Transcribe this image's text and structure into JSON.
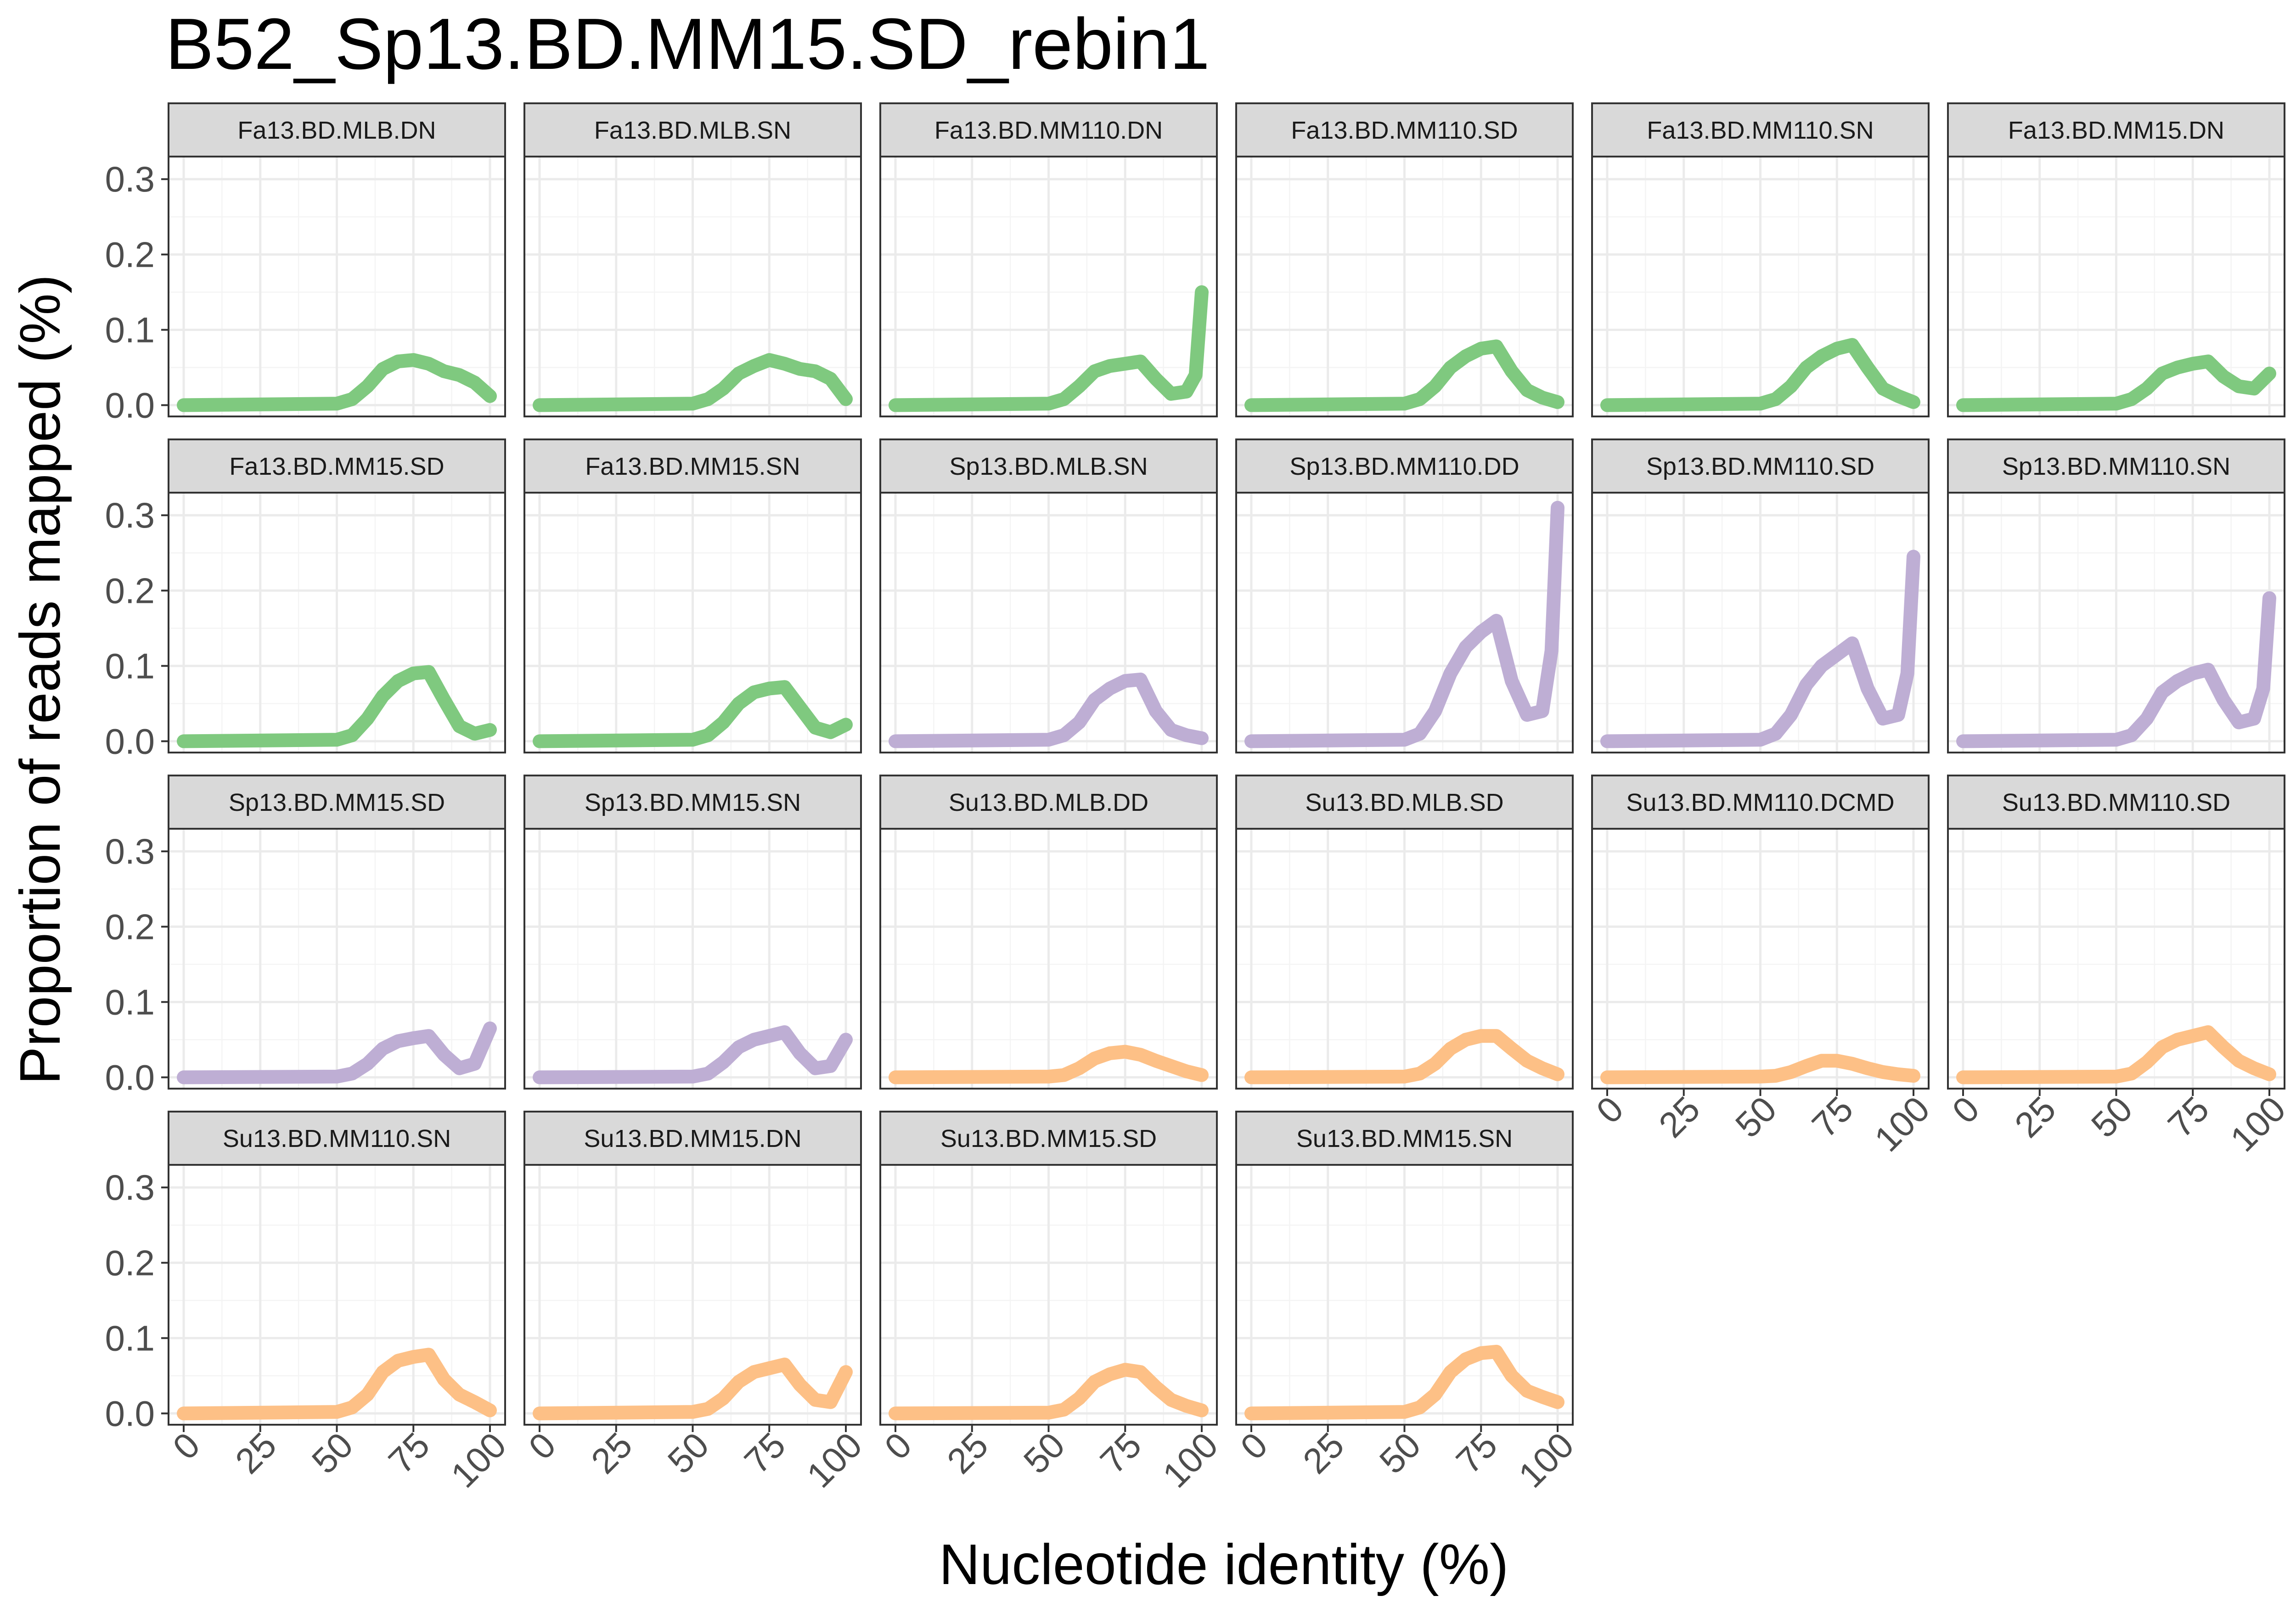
{
  "chart_data": {
    "type": "line",
    "title": "B52_Sp13.BD.MM15.SD_rebin1",
    "xlabel": "Nucleotide identity (%)",
    "ylabel": "Proportion of reads mapped (%)",
    "xlim": [
      0,
      100
    ],
    "ylim": [
      -0.015,
      0.33
    ],
    "x_ticks": [
      0,
      25,
      50,
      75,
      100
    ],
    "y_ticks": [
      0.0,
      0.1,
      0.2,
      0.3
    ],
    "x_tick_labels": [
      "0",
      "25",
      "50",
      "75",
      "100"
    ],
    "y_tick_labels": [
      "0.0",
      "0.1",
      "0.2",
      "0.3"
    ],
    "grid": true,
    "legend": "none",
    "layout": {
      "columns": 6,
      "rows": 4
    },
    "colors": {
      "Fa": "#7fc97f",
      "Sp": "#beaed4",
      "Su": "#fdc086"
    },
    "panels": [
      {
        "name": "Fa13.BD.MLB.DN",
        "group": "Fa",
        "x": [
          0,
          50,
          55,
          60,
          65,
          70,
          75,
          80,
          85,
          90,
          95,
          100
        ],
        "y": [
          0,
          0.002,
          0.008,
          0.025,
          0.048,
          0.058,
          0.06,
          0.055,
          0.045,
          0.04,
          0.03,
          0.012
        ]
      },
      {
        "name": "Fa13.BD.MLB.SN",
        "group": "Fa",
        "x": [
          0,
          50,
          55,
          60,
          65,
          70,
          75,
          80,
          85,
          90,
          95,
          100
        ],
        "y": [
          0,
          0.002,
          0.008,
          0.022,
          0.042,
          0.052,
          0.06,
          0.055,
          0.048,
          0.045,
          0.035,
          0.008
        ]
      },
      {
        "name": "Fa13.BD.MM110.DN",
        "group": "Fa",
        "x": [
          0,
          50,
          55,
          60,
          65,
          70,
          75,
          80,
          85,
          90,
          95,
          98,
          100
        ],
        "y": [
          0,
          0.002,
          0.008,
          0.025,
          0.045,
          0.052,
          0.055,
          0.058,
          0.035,
          0.015,
          0.018,
          0.04,
          0.15
        ]
      },
      {
        "name": "Fa13.BD.MM110.SD",
        "group": "Fa",
        "x": [
          0,
          50,
          55,
          60,
          65,
          70,
          75,
          80,
          85,
          90,
          95,
          100
        ],
        "y": [
          0,
          0.002,
          0.008,
          0.025,
          0.05,
          0.065,
          0.075,
          0.078,
          0.045,
          0.02,
          0.01,
          0.004
        ]
      },
      {
        "name": "Fa13.BD.MM110.SN",
        "group": "Fa",
        "x": [
          0,
          50,
          55,
          60,
          65,
          70,
          75,
          80,
          85,
          90,
          95,
          100
        ],
        "y": [
          0,
          0.002,
          0.008,
          0.025,
          0.05,
          0.065,
          0.075,
          0.08,
          0.05,
          0.022,
          0.012,
          0.004
        ]
      },
      {
        "name": "Fa13.BD.MM15.DN",
        "group": "Fa",
        "x": [
          0,
          50,
          55,
          60,
          65,
          70,
          75,
          80,
          85,
          90,
          95,
          100
        ],
        "y": [
          0,
          0.002,
          0.008,
          0.022,
          0.042,
          0.05,
          0.055,
          0.058,
          0.038,
          0.025,
          0.022,
          0.042
        ]
      },
      {
        "name": "Fa13.BD.MM15.SD",
        "group": "Fa",
        "x": [
          0,
          50,
          55,
          60,
          65,
          70,
          75,
          80,
          85,
          90,
          95,
          100
        ],
        "y": [
          0,
          0.002,
          0.008,
          0.03,
          0.06,
          0.08,
          0.09,
          0.092,
          0.055,
          0.02,
          0.01,
          0.015
        ]
      },
      {
        "name": "Fa13.BD.MM15.SN",
        "group": "Fa",
        "x": [
          0,
          50,
          55,
          60,
          65,
          70,
          75,
          80,
          85,
          90,
          95,
          100
        ],
        "y": [
          0,
          0.002,
          0.008,
          0.025,
          0.05,
          0.065,
          0.07,
          0.072,
          0.045,
          0.018,
          0.012,
          0.022
        ]
      },
      {
        "name": "Sp13.BD.MLB.SN",
        "group": "Sp",
        "x": [
          0,
          50,
          55,
          60,
          65,
          70,
          75,
          80,
          85,
          90,
          95,
          100
        ],
        "y": [
          0,
          0.002,
          0.008,
          0.025,
          0.055,
          0.07,
          0.08,
          0.082,
          0.04,
          0.015,
          0.008,
          0.004
        ]
      },
      {
        "name": "Sp13.BD.MM110.DD",
        "group": "Sp",
        "x": [
          0,
          50,
          55,
          60,
          65,
          70,
          75,
          80,
          85,
          90,
          95,
          98,
          100
        ],
        "y": [
          0,
          0.002,
          0.01,
          0.04,
          0.09,
          0.125,
          0.145,
          0.16,
          0.08,
          0.035,
          0.04,
          0.12,
          0.31
        ]
      },
      {
        "name": "Sp13.BD.MM110.SD",
        "group": "Sp",
        "x": [
          0,
          50,
          55,
          60,
          65,
          70,
          75,
          80,
          85,
          90,
          95,
          98,
          100
        ],
        "y": [
          0,
          0.002,
          0.01,
          0.035,
          0.075,
          0.1,
          0.115,
          0.13,
          0.07,
          0.03,
          0.035,
          0.09,
          0.245
        ]
      },
      {
        "name": "Sp13.BD.MM110.SN",
        "group": "Sp",
        "x": [
          0,
          50,
          55,
          60,
          65,
          70,
          75,
          80,
          85,
          90,
          95,
          98,
          100
        ],
        "y": [
          0,
          0.002,
          0.008,
          0.03,
          0.065,
          0.08,
          0.09,
          0.095,
          0.055,
          0.025,
          0.03,
          0.07,
          0.19
        ]
      },
      {
        "name": "Sp13.BD.MM15.SD",
        "group": "Sp",
        "x": [
          0,
          50,
          55,
          60,
          65,
          70,
          75,
          80,
          85,
          90,
          95,
          100
        ],
        "y": [
          0,
          0.001,
          0.005,
          0.018,
          0.038,
          0.048,
          0.052,
          0.055,
          0.03,
          0.012,
          0.018,
          0.065
        ]
      },
      {
        "name": "Sp13.BD.MM15.SN",
        "group": "Sp",
        "x": [
          0,
          50,
          55,
          60,
          65,
          70,
          75,
          80,
          85,
          90,
          95,
          100
        ],
        "y": [
          0,
          0.001,
          0.005,
          0.02,
          0.04,
          0.05,
          0.055,
          0.06,
          0.032,
          0.012,
          0.015,
          0.05
        ]
      },
      {
        "name": "Su13.BD.MLB.DD",
        "group": "Su",
        "x": [
          0,
          50,
          55,
          60,
          65,
          70,
          75,
          80,
          85,
          90,
          95,
          100
        ],
        "y": [
          0,
          0.001,
          0.003,
          0.012,
          0.025,
          0.032,
          0.034,
          0.03,
          0.022,
          0.015,
          0.008,
          0.003
        ]
      },
      {
        "name": "Su13.BD.MLB.SD",
        "group": "Su",
        "x": [
          0,
          50,
          55,
          60,
          65,
          70,
          75,
          80,
          85,
          90,
          95,
          100
        ],
        "y": [
          0,
          0.001,
          0.005,
          0.018,
          0.038,
          0.05,
          0.055,
          0.055,
          0.038,
          0.022,
          0.012,
          0.004
        ]
      },
      {
        "name": "Su13.BD.MM110.DCMD",
        "group": "Su",
        "x": [
          0,
          50,
          55,
          60,
          65,
          70,
          75,
          80,
          85,
          90,
          95,
          100
        ],
        "y": [
          0,
          0.001,
          0.002,
          0.007,
          0.015,
          0.022,
          0.022,
          0.018,
          0.012,
          0.007,
          0.004,
          0.002
        ]
      },
      {
        "name": "Su13.BD.MM110.SD",
        "group": "Su",
        "x": [
          0,
          50,
          55,
          60,
          65,
          70,
          75,
          80,
          85,
          90,
          95,
          100
        ],
        "y": [
          0,
          0.001,
          0.005,
          0.02,
          0.04,
          0.05,
          0.055,
          0.06,
          0.04,
          0.022,
          0.012,
          0.004
        ]
      },
      {
        "name": "Su13.BD.MM110.SN",
        "group": "Su",
        "x": [
          0,
          50,
          55,
          60,
          65,
          70,
          75,
          80,
          85,
          90,
          95,
          100
        ],
        "y": [
          0,
          0.002,
          0.008,
          0.025,
          0.055,
          0.07,
          0.075,
          0.078,
          0.045,
          0.025,
          0.015,
          0.004
        ]
      },
      {
        "name": "Su13.BD.MM15.DN",
        "group": "Su",
        "x": [
          0,
          50,
          55,
          60,
          65,
          70,
          75,
          80,
          85,
          90,
          95,
          100
        ],
        "y": [
          0,
          0.002,
          0.006,
          0.02,
          0.042,
          0.055,
          0.06,
          0.065,
          0.038,
          0.018,
          0.015,
          0.055
        ]
      },
      {
        "name": "Su13.BD.MM15.SD",
        "group": "Su",
        "x": [
          0,
          50,
          55,
          60,
          65,
          70,
          75,
          80,
          85,
          90,
          95,
          100
        ],
        "y": [
          0,
          0.001,
          0.005,
          0.02,
          0.042,
          0.052,
          0.058,
          0.055,
          0.035,
          0.018,
          0.01,
          0.004
        ]
      },
      {
        "name": "Su13.BD.MM15.SN",
        "group": "Su",
        "x": [
          0,
          50,
          55,
          60,
          65,
          70,
          75,
          80,
          85,
          90,
          95,
          100
        ],
        "y": [
          0,
          0.002,
          0.008,
          0.025,
          0.055,
          0.072,
          0.08,
          0.082,
          0.05,
          0.03,
          0.022,
          0.015
        ]
      }
    ]
  }
}
